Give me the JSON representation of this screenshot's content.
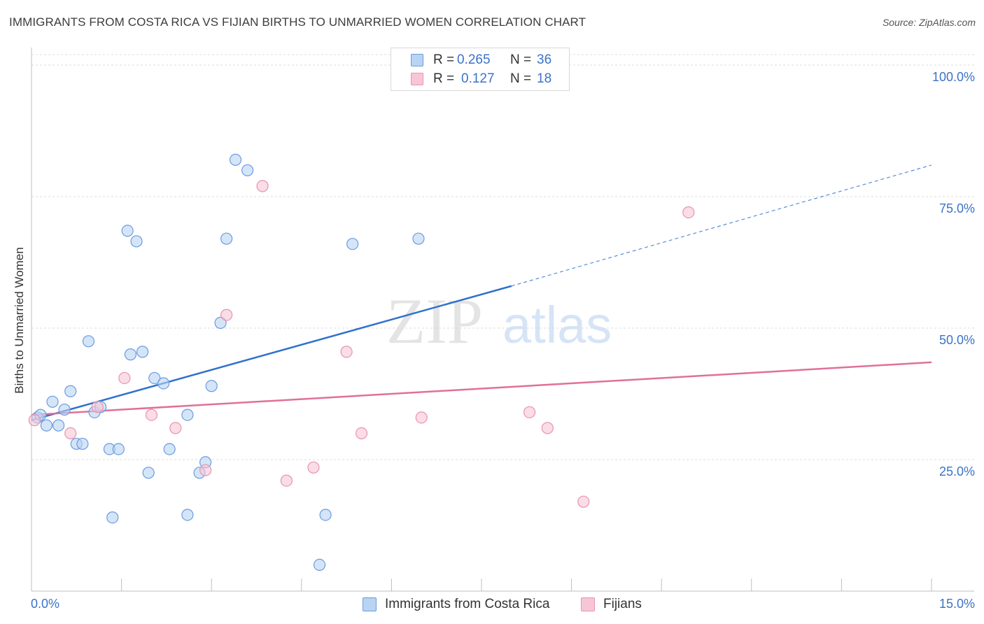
{
  "header": {
    "title": "IMMIGRANTS FROM COSTA RICA VS FIJIAN BIRTHS TO UNMARRIED WOMEN CORRELATION CHART",
    "source": "Source: ZipAtlas.com"
  },
  "legend": {
    "series1": {
      "r_label": "R =",
      "r_value": "0.265",
      "n_label": "N =",
      "n_value": "36"
    },
    "series2": {
      "r_label": "R =",
      "r_value": "0.127",
      "n_label": "N =",
      "n_value": "18"
    }
  },
  "bottom_legend": {
    "series1": "Immigrants from Costa Rica",
    "series2": "Fijians"
  },
  "watermark": {
    "zip": "ZIP",
    "atlas": "atlas"
  },
  "colors": {
    "blue_fill": "#b9d3f3",
    "blue_stroke": "#6a9be0",
    "blue_line": "#2f72cc",
    "pink_fill": "#f7c6d6",
    "pink_stroke": "#e993ae",
    "pink_line": "#e0709a",
    "tick_text": "#3b73c9",
    "grid": "#dcdcdc"
  },
  "chart_data": {
    "type": "scatter",
    "title": "IMMIGRANTS FROM COSTA RICA VS FIJIAN BIRTHS TO UNMARRIED WOMEN CORRELATION CHART",
    "xlabel": "",
    "ylabel": "Births to Unmarried Women",
    "xlim": [
      0,
      15
    ],
    "ylim": [
      0,
      102
    ],
    "x_tick_labels": {
      "min": "0.0%",
      "max": "15.0%"
    },
    "y_ticks": [
      25,
      50,
      75,
      100
    ],
    "y_tick_labels": [
      "25.0%",
      "50.0%",
      "75.0%",
      "100.0%"
    ],
    "series": [
      {
        "name": "Immigrants from Costa Rica",
        "r": 0.265,
        "n": 36,
        "points": [
          [
            0.1,
            33.0
          ],
          [
            0.15,
            33.5
          ],
          [
            0.25,
            31.5
          ],
          [
            0.35,
            36.0
          ],
          [
            0.45,
            31.5
          ],
          [
            0.55,
            34.5
          ],
          [
            0.65,
            38.0
          ],
          [
            0.75,
            28.0
          ],
          [
            0.85,
            28.0
          ],
          [
            0.95,
            47.5
          ],
          [
            1.05,
            34.0
          ],
          [
            1.15,
            35.0
          ],
          [
            1.3,
            27.0
          ],
          [
            1.45,
            27.0
          ],
          [
            1.6,
            68.5
          ],
          [
            1.65,
            45.0
          ],
          [
            1.75,
            66.5
          ],
          [
            1.85,
            45.5
          ],
          [
            1.95,
            22.5
          ],
          [
            2.05,
            40.5
          ],
          [
            2.2,
            39.5
          ],
          [
            2.3,
            27.0
          ],
          [
            2.6,
            33.5
          ],
          [
            2.8,
            22.5
          ],
          [
            2.9,
            24.5
          ],
          [
            3.0,
            39.0
          ],
          [
            3.15,
            51.0
          ],
          [
            3.25,
            67.0
          ],
          [
            3.4,
            82.0
          ],
          [
            3.6,
            80.0
          ],
          [
            1.35,
            14.0
          ],
          [
            2.6,
            14.5
          ],
          [
            4.8,
            5.0
          ],
          [
            4.9,
            14.5
          ],
          [
            5.35,
            66.0
          ],
          [
            6.45,
            67.0
          ]
        ],
        "trend": {
          "x": [
            0,
            8.0
          ],
          "y": [
            32.5,
            58.0
          ],
          "dashed_to": [
            15.0,
            81.0
          ]
        }
      },
      {
        "name": "Fijians",
        "r": 0.127,
        "n": 18,
        "points": [
          [
            0.05,
            32.5
          ],
          [
            0.65,
            30.0
          ],
          [
            1.1,
            35.0
          ],
          [
            1.55,
            40.5
          ],
          [
            2.0,
            33.5
          ],
          [
            2.4,
            31.0
          ],
          [
            2.9,
            23.0
          ],
          [
            3.25,
            52.5
          ],
          [
            3.85,
            77.0
          ],
          [
            4.25,
            21.0
          ],
          [
            4.7,
            23.5
          ],
          [
            5.25,
            45.5
          ],
          [
            5.5,
            30.0
          ],
          [
            6.5,
            33.0
          ],
          [
            8.3,
            34.0
          ],
          [
            8.6,
            31.0
          ],
          [
            9.2,
            17.0
          ],
          [
            10.95,
            72.0
          ]
        ],
        "trend": {
          "x": [
            0,
            15.0
          ],
          "y": [
            33.5,
            43.5
          ]
        }
      }
    ]
  }
}
